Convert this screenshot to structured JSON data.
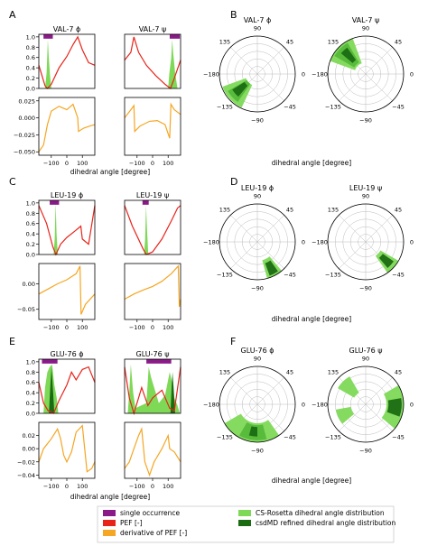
{
  "figure": {
    "panel_letters": [
      "A",
      "B",
      "C",
      "D",
      "E",
      "F"
    ],
    "polar_xlabel": "dihedral angle [degree]",
    "linear_xlabel": "dihedral angle [degree]",
    "polar_tick_labels": [
      "90",
      "45",
      "0",
      "−45",
      "−90",
      "−135",
      "−180",
      "135"
    ]
  },
  "legend": {
    "items": [
      {
        "label": "single occurrence",
        "color": "#8b1a89"
      },
      {
        "label": "PEF [-]",
        "color": "#e8241a"
      },
      {
        "label": "derivative of PEF [-]",
        "color": "#f5a623"
      },
      {
        "label": "CS-Rosetta dihedral angle distribution",
        "color": "#7ed957"
      },
      {
        "label": "csdMD refined dihedral angle distribution",
        "color": "#1b6b12"
      }
    ]
  },
  "colors": {
    "single_occurrence": "#8b1a89",
    "pef": "#e8241a",
    "derivative": "#f5a623",
    "cs_rosetta": "#7ed957",
    "csdmd": "#1b6b12"
  },
  "chart_data": [
    {
      "type": "line",
      "panel": "A",
      "title": "VAL-7 ϕ",
      "ylim": [
        0,
        1.05
      ],
      "yticks": [
        "0.0",
        "0.2",
        "0.4",
        "0.6",
        "0.8",
        "1.0"
      ],
      "xticks": [],
      "pef": [
        [
          -180,
          0.45
        ],
        [
          -140,
          0.05
        ],
        [
          -125,
          0.0
        ],
        [
          -100,
          0.08
        ],
        [
          -50,
          0.4
        ],
        [
          0,
          0.62
        ],
        [
          40,
          0.85
        ],
        [
          70,
          1.0
        ],
        [
          100,
          0.75
        ],
        [
          140,
          0.5
        ],
        [
          180,
          0.45
        ]
      ],
      "dist_cs": [
        [
          -140,
          0.0
        ],
        [
          -130,
          0.3
        ],
        [
          -122,
          0.95
        ],
        [
          -116,
          0.6
        ],
        [
          -108,
          0.25
        ],
        [
          -100,
          0.0
        ]
      ],
      "occurrence": [
        -150,
        -90
      ]
    },
    {
      "type": "line",
      "panel": "A",
      "title": "VAL-7 ψ",
      "ylim": [
        0,
        1.05
      ],
      "yticks": [],
      "xticks": [],
      "pef": [
        [
          -180,
          0.55
        ],
        [
          -140,
          0.7
        ],
        [
          -120,
          1.0
        ],
        [
          -90,
          0.7
        ],
        [
          -40,
          0.45
        ],
        [
          20,
          0.25
        ],
        [
          80,
          0.08
        ],
        [
          115,
          0.0
        ],
        [
          140,
          0.2
        ],
        [
          180,
          0.55
        ]
      ],
      "dist_cs": [
        [
          100,
          0.0
        ],
        [
          108,
          0.3
        ],
        [
          120,
          0.6
        ],
        [
          126,
          0.95
        ],
        [
          132,
          0.7
        ],
        [
          145,
          0.3
        ],
        [
          160,
          0.0
        ]
      ],
      "occurrence": [
        110,
        175
      ]
    },
    {
      "type": "line",
      "panel": "A",
      "title": "",
      "ylim": [
        -0.055,
        0.03
      ],
      "yticks": [
        "−0.050",
        "−0.025",
        "0.000",
        "0.025"
      ],
      "xticks": [
        "−100",
        "0",
        "100"
      ],
      "deriv": [
        [
          -180,
          -0.05
        ],
        [
          -150,
          -0.04
        ],
        [
          -125,
          -0.01
        ],
        [
          -100,
          0.01
        ],
        [
          -50,
          0.017
        ],
        [
          0,
          0.012
        ],
        [
          40,
          0.02
        ],
        [
          70,
          0.0
        ],
        [
          75,
          -0.02
        ],
        [
          110,
          -0.015
        ],
        [
          150,
          -0.012
        ],
        [
          180,
          -0.01
        ]
      ]
    },
    {
      "type": "line",
      "panel": "A",
      "title": "",
      "ylim": [
        -0.055,
        0.03
      ],
      "yticks": [],
      "xticks": [
        "−100",
        "0",
        "100"
      ],
      "deriv": [
        [
          -180,
          0.0
        ],
        [
          -140,
          0.012
        ],
        [
          -120,
          0.018
        ],
        [
          -115,
          -0.02
        ],
        [
          -80,
          -0.012
        ],
        [
          -20,
          -0.005
        ],
        [
          30,
          -0.004
        ],
        [
          80,
          -0.01
        ],
        [
          110,
          -0.03
        ],
        [
          118,
          0.02
        ],
        [
          140,
          0.012
        ],
        [
          180,
          0.005
        ]
      ]
    },
    {
      "type": "line",
      "panel": "C",
      "title": "LEU-19 ϕ",
      "ylim": [
        0,
        1.05
      ],
      "yticks": [
        "0.0",
        "0.2",
        "0.4",
        "0.6",
        "0.8",
        "1.0"
      ],
      "xticks": [],
      "pef": [
        [
          -180,
          0.95
        ],
        [
          -130,
          0.6
        ],
        [
          -90,
          0.15
        ],
        [
          -70,
          0.0
        ],
        [
          -40,
          0.2
        ],
        [
          0,
          0.33
        ],
        [
          50,
          0.45
        ],
        [
          90,
          0.55
        ],
        [
          100,
          0.3
        ],
        [
          140,
          0.2
        ],
        [
          180,
          0.95
        ]
      ],
      "dist_cs": [
        [
          -85,
          0.0
        ],
        [
          -78,
          0.3
        ],
        [
          -72,
          1.0
        ],
        [
          -66,
          0.4
        ],
        [
          -58,
          0.0
        ]
      ],
      "occurrence": [
        -110,
        -50
      ]
    },
    {
      "type": "line",
      "panel": "C",
      "title": "LEU-19 ψ",
      "ylim": [
        0,
        1.05
      ],
      "yticks": [],
      "xticks": [],
      "pef": [
        [
          -180,
          0.95
        ],
        [
          -130,
          0.55
        ],
        [
          -60,
          0.1
        ],
        [
          -40,
          0.0
        ],
        [
          0,
          0.05
        ],
        [
          60,
          0.3
        ],
        [
          120,
          0.65
        ],
        [
          160,
          0.9
        ],
        [
          180,
          0.95
        ]
      ],
      "dist_cs": [
        [
          -55,
          0.0
        ],
        [
          -48,
          0.3
        ],
        [
          -42,
          0.95
        ],
        [
          -36,
          0.5
        ],
        [
          -28,
          0.0
        ]
      ],
      "occurrence": [
        -65,
        -25
      ]
    },
    {
      "type": "line",
      "panel": "C",
      "title": "",
      "ylim": [
        -0.07,
        0.04
      ],
      "yticks": [
        "−0.05",
        "0.00"
      ],
      "xticks": [
        "−100",
        "0",
        "100"
      ],
      "deriv": [
        [
          -180,
          -0.02
        ],
        [
          -120,
          -0.01
        ],
        [
          -60,
          0.0
        ],
        [
          0,
          0.008
        ],
        [
          60,
          0.02
        ],
        [
          85,
          0.035
        ],
        [
          92,
          -0.06
        ],
        [
          120,
          -0.04
        ],
        [
          180,
          -0.02
        ]
      ]
    },
    {
      "type": "line",
      "panel": "C",
      "title": "",
      "ylim": [
        -0.07,
        0.04
      ],
      "yticks": [],
      "xticks": [
        "−100",
        "0",
        "100"
      ],
      "deriv": [
        [
          -180,
          -0.03
        ],
        [
          -120,
          -0.02
        ],
        [
          -60,
          -0.012
        ],
        [
          0,
          -0.005
        ],
        [
          60,
          0.005
        ],
        [
          120,
          0.02
        ],
        [
          165,
          0.035
        ],
        [
          172,
          -0.045
        ],
        [
          180,
          -0.03
        ]
      ]
    },
    {
      "type": "line",
      "panel": "E",
      "title": "GLU-76 ϕ",
      "ylim": [
        0,
        1.05
      ],
      "yticks": [
        "0.0",
        "0.2",
        "0.4",
        "0.6",
        "0.8",
        "1.0"
      ],
      "xticks": [],
      "pef": [
        [
          -180,
          0.6
        ],
        [
          -150,
          0.2
        ],
        [
          -120,
          0.05
        ],
        [
          -85,
          0.0
        ],
        [
          -50,
          0.25
        ],
        [
          0,
          0.55
        ],
        [
          30,
          0.8
        ],
        [
          60,
          0.65
        ],
        [
          100,
          0.85
        ],
        [
          140,
          0.9
        ],
        [
          180,
          0.6
        ]
      ],
      "dist_cs": [
        [
          -150,
          0.0
        ],
        [
          -140,
          0.5
        ],
        [
          -125,
          0.8
        ],
        [
          -110,
          0.9
        ],
        [
          -95,
          0.95
        ],
        [
          -80,
          0.55
        ],
        [
          -65,
          0.3
        ],
        [
          -55,
          0.0
        ]
      ],
      "dist_md": [
        [
          -115,
          0.0
        ],
        [
          -105,
          0.6
        ],
        [
          -98,
          0.9
        ],
        [
          -90,
          0.5
        ],
        [
          -80,
          0.0
        ]
      ],
      "occurrence": [
        -160,
        -60
      ]
    },
    {
      "type": "line",
      "panel": "E",
      "title": "GLU-76 ψ",
      "ylim": [
        0,
        1.05
      ],
      "yticks": [],
      "xticks": [],
      "pef": [
        [
          -180,
          0.9
        ],
        [
          -150,
          0.3
        ],
        [
          -120,
          0.0
        ],
        [
          -70,
          0.5
        ],
        [
          -30,
          0.15
        ],
        [
          0,
          0.3
        ],
        [
          60,
          0.45
        ],
        [
          110,
          0.1
        ],
        [
          140,
          0.05
        ],
        [
          180,
          0.9
        ]
      ],
      "dist_cs": [
        [
          -160,
          0.0
        ],
        [
          -150,
          0.4
        ],
        [
          -140,
          0.95
        ],
        [
          -125,
          0.4
        ],
        [
          -110,
          0.1
        ],
        [
          -40,
          0.2
        ],
        [
          -25,
          0.9
        ],
        [
          -10,
          0.7
        ],
        [
          10,
          0.5
        ],
        [
          40,
          0.2
        ],
        [
          80,
          0.35
        ],
        [
          110,
          0.8
        ],
        [
          125,
          0.6
        ],
        [
          140,
          0.3
        ],
        [
          160,
          0.15
        ],
        [
          175,
          0.0
        ]
      ],
      "dist_md": [
        [
          115,
          0.0
        ],
        [
          122,
          0.5
        ],
        [
          128,
          0.8
        ],
        [
          135,
          0.5
        ],
        [
          145,
          0.0
        ]
      ],
      "occurrence": [
        -40,
        120
      ]
    },
    {
      "type": "line",
      "panel": "E",
      "title": "",
      "ylim": [
        -0.045,
        0.04
      ],
      "yticks": [
        "−0.04",
        "−0.02",
        "0.00",
        "0.02"
      ],
      "xticks": [
        "−100",
        "0",
        "100"
      ],
      "deriv": [
        [
          -180,
          -0.02
        ],
        [
          -150,
          0.0
        ],
        [
          -100,
          0.015
        ],
        [
          -60,
          0.03
        ],
        [
          -40,
          0.015
        ],
        [
          -20,
          -0.01
        ],
        [
          0,
          -0.02
        ],
        [
          30,
          -0.005
        ],
        [
          60,
          0.025
        ],
        [
          100,
          0.035
        ],
        [
          130,
          -0.035
        ],
        [
          160,
          -0.03
        ],
        [
          180,
          -0.02
        ]
      ]
    },
    {
      "type": "line",
      "panel": "E",
      "title": "",
      "ylim": [
        -0.045,
        0.04
      ],
      "yticks": [],
      "xticks": [
        "−100",
        "0",
        "100"
      ],
      "deriv": [
        [
          -180,
          -0.03
        ],
        [
          -150,
          -0.02
        ],
        [
          -120,
          0.0
        ],
        [
          -90,
          0.02
        ],
        [
          -70,
          0.03
        ],
        [
          -50,
          -0.02
        ],
        [
          -20,
          -0.04
        ],
        [
          10,
          -0.02
        ],
        [
          60,
          0.0
        ],
        [
          100,
          0.02
        ],
        [
          110,
          0.0
        ],
        [
          140,
          -0.005
        ],
        [
          180,
          -0.02
        ]
      ]
    },
    {
      "type": "polar",
      "panel": "B",
      "title": "VAL-7 ϕ",
      "wedges": [
        {
          "a1": -160,
          "a2": -115,
          "r1": 0.32,
          "r2": 0.98,
          "color": "#7ed957"
        },
        {
          "a1": -150,
          "a2": -125,
          "r1": 0.32,
          "r2": 0.9,
          "color": "#55b93a"
        },
        {
          "a1": -148,
          "a2": -130,
          "r1": 0.4,
          "r2": 0.78,
          "color": "#1b6b12"
        }
      ]
    },
    {
      "type": "polar",
      "panel": "B",
      "title": "VAL-7 ψ",
      "wedges": [
        {
          "a1": 110,
          "a2": 160,
          "r1": 0.3,
          "r2": 1.0,
          "color": "#7ed957"
        },
        {
          "a1": 120,
          "a2": 150,
          "r1": 0.35,
          "r2": 0.95,
          "color": "#55b93a"
        },
        {
          "a1": 125,
          "a2": 140,
          "r1": 0.45,
          "r2": 0.85,
          "color": "#1b6b12"
        }
      ]
    },
    {
      "type": "polar",
      "panel": "D",
      "title": "LEU-19 ϕ",
      "wedges": [
        {
          "a1": -75,
          "a2": -50,
          "r1": 0.5,
          "r2": 1.0,
          "color": "#7ed957"
        },
        {
          "a1": -70,
          "a2": -55,
          "r1": 0.6,
          "r2": 0.95,
          "color": "#1b6b12"
        }
      ]
    },
    {
      "type": "polar",
      "panel": "D",
      "title": "LEU-19 ψ",
      "wedges": [
        {
          "a1": -55,
          "a2": -30,
          "r1": 0.45,
          "r2": 1.0,
          "color": "#7ed957"
        },
        {
          "a1": -50,
          "a2": -35,
          "r1": 0.55,
          "r2": 0.9,
          "color": "#1b6b12"
        }
      ]
    },
    {
      "type": "polar",
      "panel": "F",
      "title": "GLU-76 ϕ",
      "wedges": [
        {
          "a1": -150,
          "a2": -55,
          "r1": 0.5,
          "r2": 1.0,
          "color": "#7ed957"
        },
        {
          "a1": -120,
          "a2": -75,
          "r1": 0.55,
          "r2": 0.95,
          "color": "#55b93a"
        },
        {
          "a1": -105,
          "a2": -90,
          "r1": 0.6,
          "r2": 0.85,
          "color": "#1b6b12"
        }
      ]
    },
    {
      "type": "polar",
      "panel": "F",
      "title": "GLU-76 ψ",
      "wedges": [
        {
          "a1": -40,
          "a2": 30,
          "r1": 0.55,
          "r2": 1.0,
          "color": "#7ed957"
        },
        {
          "a1": -20,
          "a2": 10,
          "r1": 0.6,
          "r2": 0.95,
          "color": "#1b6b12"
        },
        {
          "a1": 120,
          "a2": 150,
          "r1": 0.35,
          "r2": 0.85,
          "color": "#7ed957"
        },
        {
          "a1": -170,
          "a2": -140,
          "r1": 0.4,
          "r2": 0.8,
          "color": "#7ed957"
        }
      ]
    }
  ]
}
